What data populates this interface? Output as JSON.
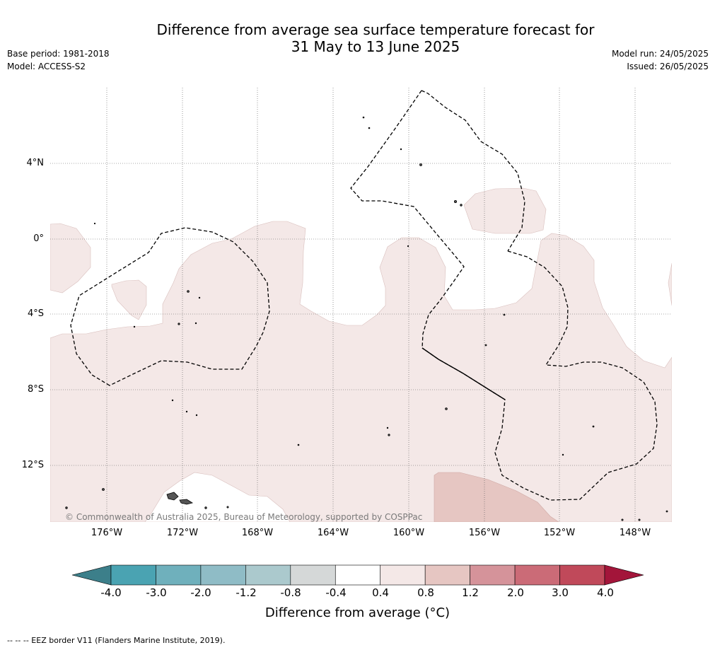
{
  "title": {
    "line1": "Difference from average sea surface temperature forecast for",
    "line2": "31 May to 13 June 2025"
  },
  "meta": {
    "base_period": "Base period: 1981-2018",
    "model": "Model: ACCESS-S2",
    "model_run": "Model run: 24/05/2025",
    "issued": "Issued: 26/05/2025"
  },
  "map": {
    "lat_labels": [
      "4°N",
      "0°",
      "4°S",
      "8°S",
      "12°S"
    ],
    "lon_labels": [
      "176°W",
      "172°W",
      "168°W",
      "164°W",
      "160°W",
      "156°W",
      "152°W",
      "148°W"
    ],
    "copyright": "© Commonwealth of Australia 2025, Bureau of Meteorology, supported by COSPPac"
  },
  "colorbar": {
    "ticks": [
      "-4.0",
      "-3.0",
      "-2.0",
      "-1.2",
      "-0.8",
      "-0.4",
      "0.4",
      "0.8",
      "1.2",
      "2.0",
      "3.0",
      "4.0"
    ],
    "colors": [
      "#4aa3b2",
      "#6fb0bc",
      "#8fbcc6",
      "#abc9cd",
      "#d5d8d8",
      "#ffffff",
      "#f4e8e7",
      "#e6c6c2",
      "#d5939a",
      "#cb6b77",
      "#c0495a"
    ],
    "low_extend_color": "#3c7f8a",
    "high_extend_color": "#a3153a",
    "label": "Difference from average (°C)"
  },
  "footer": "-- -- -- EEZ border V11 (Flanders Marine Institute, 2019)."
}
